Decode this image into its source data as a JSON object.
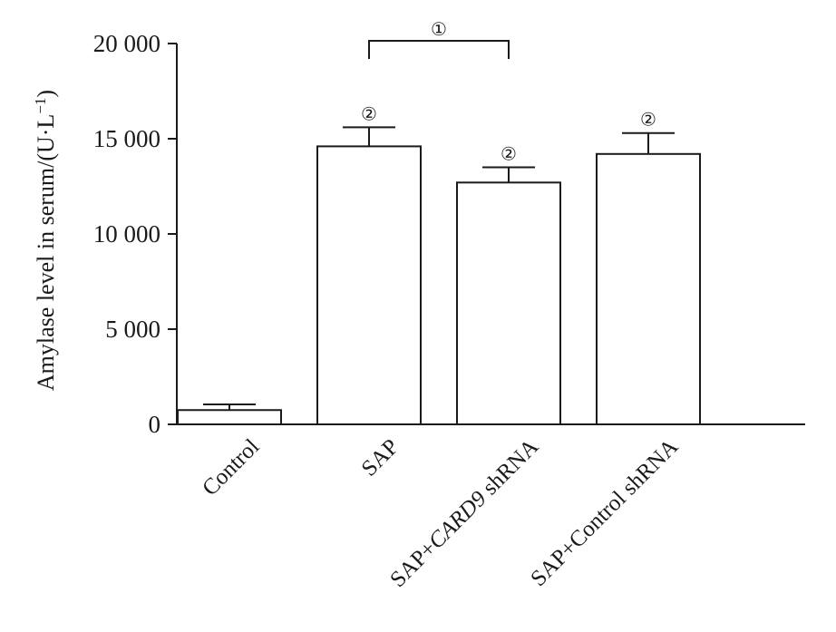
{
  "chart_data": {
    "type": "bar",
    "title": "",
    "xlabel": "",
    "ylabel": "Amylase level in serum/(U·L",
    "ylabel_exponent": "−1",
    "ylabel_close": ")",
    "ylim": [
      0,
      20000
    ],
    "yticks": [
      0,
      5000,
      10000,
      15000,
      20000
    ],
    "ytick_labels": [
      "0",
      "5 000",
      "10 000",
      "15 000",
      "20 000"
    ],
    "grid": false,
    "categories": [
      "Control",
      "SAP",
      "SAP+CARD9 shRNA",
      "SAP+Control shRNA"
    ],
    "category_parts": [
      [
        {
          "text": "Control",
          "italic": false
        }
      ],
      [
        {
          "text": "SAP",
          "italic": false
        }
      ],
      [
        {
          "text": "SAP+",
          "italic": false
        },
        {
          "text": "CARD9",
          "italic": true
        },
        {
          "text": " shRNA",
          "italic": false
        }
      ],
      [
        {
          "text": "SAP+Control shRNA",
          "italic": false
        }
      ]
    ],
    "values": [
      750,
      14600,
      12700,
      14200
    ],
    "errors": [
      300,
      1000,
      800,
      1100
    ],
    "bar_annotations": [
      "",
      "②",
      "②",
      "②"
    ],
    "comparisons": [
      {
        "from": 1,
        "to": 2,
        "label": "①"
      }
    ],
    "colors": {
      "bar_fill": "#ffffff",
      "stroke": "#1a1a1a"
    }
  }
}
